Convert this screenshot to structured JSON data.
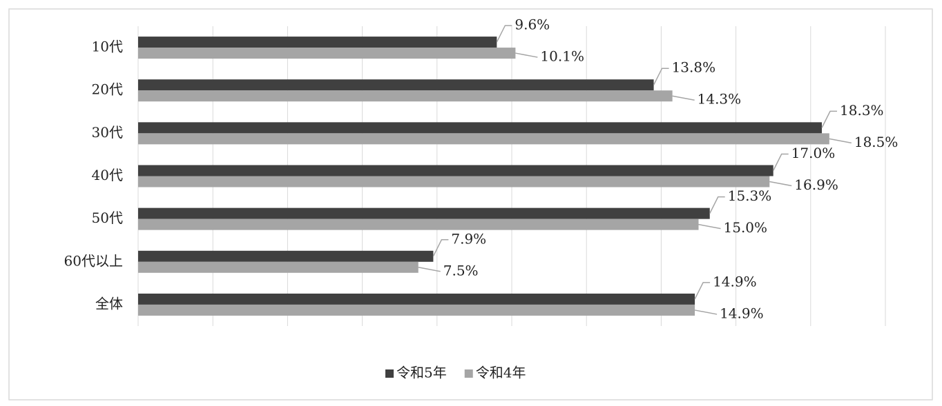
{
  "chart_data": {
    "type": "hbar",
    "categories": [
      "10代",
      "20代",
      "30代",
      "40代",
      "50代",
      "60代以上",
      "全体"
    ],
    "series": [
      {
        "name": "令和5年",
        "color": "#404040",
        "values": [
          9.6,
          13.8,
          18.3,
          17.0,
          15.3,
          7.9,
          14.9
        ],
        "value_labels": [
          "9.6%",
          "13.8%",
          "18.3%",
          "17.0%",
          "15.3%",
          "7.9%",
          "14.9%"
        ]
      },
      {
        "name": "令和4年",
        "color": "#a5a5a5",
        "values": [
          10.1,
          14.3,
          18.5,
          16.9,
          15.0,
          7.5,
          14.9
        ],
        "value_labels": [
          "10.1%",
          "14.3%",
          "18.5%",
          "16.9%",
          "15.0%",
          "7.5%",
          "14.9%"
        ]
      }
    ],
    "xlim": [
      0,
      20
    ],
    "xticks": [
      0,
      2,
      4,
      6,
      8,
      10,
      12,
      14,
      16,
      18,
      20
    ],
    "grid": true,
    "legend": "bottom"
  }
}
